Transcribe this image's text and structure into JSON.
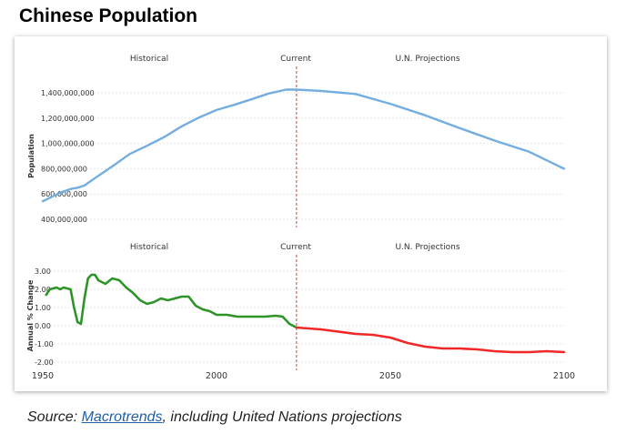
{
  "page_title": "Chinese Population",
  "source": {
    "prefix": "Source: ",
    "link_text": "Macrotrends",
    "suffix": ", including United Nations projections"
  },
  "colors": {
    "population_line": "#74aee0",
    "change_historical": "#2e9428",
    "change_projection": "#f02828",
    "current_marker": "#e63a3a",
    "grid": "#e6e6e6",
    "axis_text": "#333333"
  },
  "chart_data": [
    {
      "type": "line",
      "title": "",
      "ylabel": "Population",
      "xlim": [
        1950,
        2100
      ],
      "ylim": [
        350000000,
        1450000000
      ],
      "yticks": [
        400000000,
        600000000,
        800000000,
        1000000000,
        1200000000,
        1400000000
      ],
      "ytick_labels": [
        "400,000,000",
        "600,000,000",
        "800,000,000",
        "1,000,000,000",
        "1,200,000,000",
        "1,400,000,000"
      ],
      "section_labels": [
        "Historical",
        "Current",
        "U.N. Projections"
      ],
      "current_year": 2023,
      "series": [
        {
          "x": [
            1950,
            1955,
            1958,
            1960,
            1962,
            1965,
            1970,
            1975,
            1980,
            1985,
            1990,
            1995,
            2000,
            2005,
            2010,
            2015,
            2020,
            2023,
            2030,
            2040,
            2050,
            2060,
            2070,
            2080,
            2090,
            2100
          ],
          "values": [
            543000000,
            610000000,
            640000000,
            650000000,
            667000000,
            725000000,
            818000000,
            916000000,
            981000000,
            1051000000,
            1135000000,
            1205000000,
            1264000000,
            1304000000,
            1348000000,
            1394000000,
            1425000000,
            1425000000,
            1415000000,
            1390000000,
            1313000000,
            1222000000,
            1120000000,
            1022000000,
            933000000,
            800000000
          ]
        }
      ]
    },
    {
      "type": "line",
      "title": "",
      "ylabel": "Annual % Change",
      "xlabel": "",
      "xlim": [
        1950,
        2100
      ],
      "ylim": [
        -2.2,
        3.3
      ],
      "xticks": [
        1950,
        2000,
        2050,
        2100
      ],
      "yticks": [
        3.0,
        2.0,
        1.0,
        0.0,
        -1.0,
        -2.0
      ],
      "ytick_labels": [
        "3.00",
        "2.00",
        "1.00",
        "0.00",
        "-1.00",
        "-2.00"
      ],
      "section_labels": [
        "Historical",
        "Current",
        "U.N. Projections"
      ],
      "current_year": 2023,
      "series": [
        {
          "x": [
            1951,
            1952,
            1954,
            1955,
            1956,
            1958,
            1959,
            1960,
            1961,
            1962,
            1963,
            1964,
            1965,
            1966,
            1968,
            1970,
            1972,
            1974,
            1976,
            1978,
            1980,
            1982,
            1984,
            1986,
            1988,
            1990,
            1992,
            1994,
            1996,
            1998,
            2000,
            2003,
            2006,
            2010,
            2014,
            2017,
            2019,
            2021,
            2023
          ],
          "values": [
            1.7,
            2.0,
            2.1,
            2.0,
            2.1,
            2.0,
            1.0,
            0.2,
            0.1,
            1.5,
            2.6,
            2.8,
            2.8,
            2.5,
            2.3,
            2.6,
            2.5,
            2.1,
            1.8,
            1.4,
            1.2,
            1.3,
            1.5,
            1.4,
            1.5,
            1.6,
            1.6,
            1.1,
            0.9,
            0.8,
            0.6,
            0.6,
            0.5,
            0.5,
            0.5,
            0.55,
            0.5,
            0.1,
            -0.1
          ]
        },
        {
          "x": [
            2023,
            2030,
            2040,
            2045,
            2050,
            2055,
            2060,
            2065,
            2070,
            2075,
            2080,
            2085,
            2090,
            2095,
            2100
          ],
          "values": [
            -0.1,
            -0.2,
            -0.45,
            -0.5,
            -0.65,
            -0.95,
            -1.15,
            -1.25,
            -1.25,
            -1.3,
            -1.4,
            -1.45,
            -1.45,
            -1.4,
            -1.45
          ]
        }
      ]
    }
  ]
}
